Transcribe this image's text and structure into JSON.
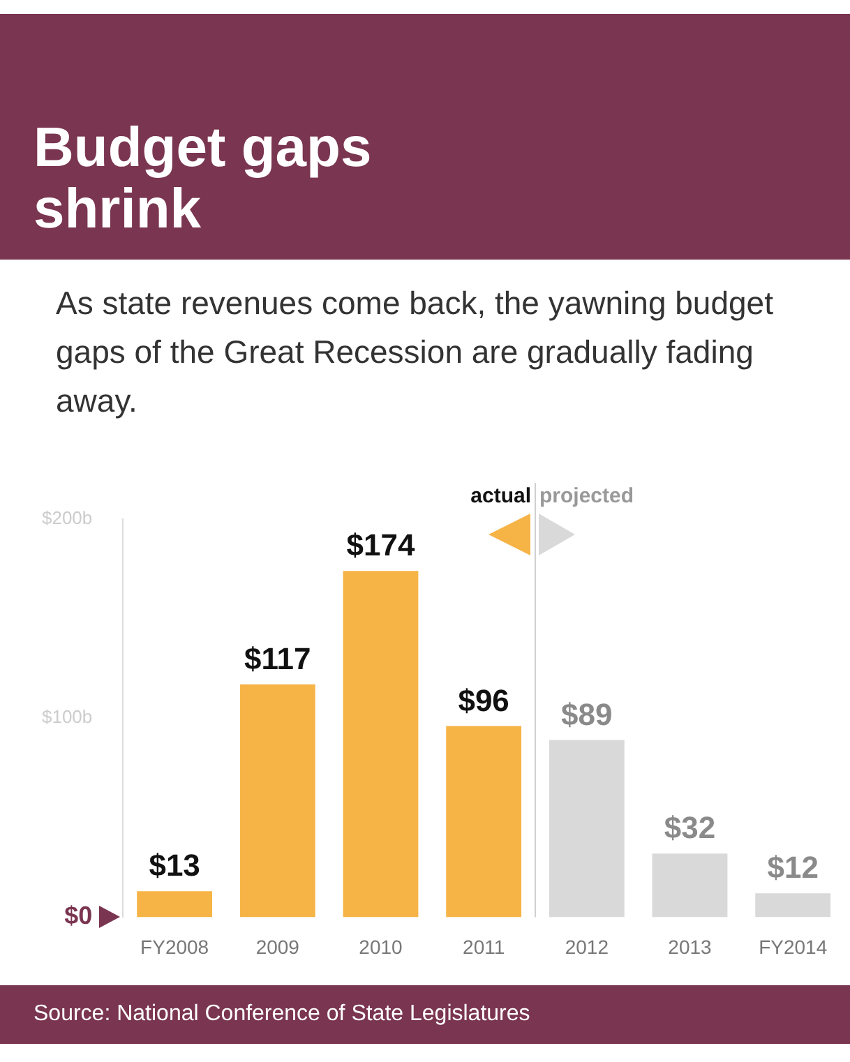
{
  "chart_data": {
    "type": "bar",
    "title": "Budget gaps shrink",
    "subtitle": "As state revenues come back, the yawning budget gaps of the Great Recession are gradually fading away.",
    "categories": [
      "FY2008",
      "2009",
      "2010",
      "2011",
      "2012",
      "2013",
      "FY2014"
    ],
    "values": [
      13,
      117,
      174,
      96,
      89,
      32,
      12
    ],
    "colors": [
      "#f6b446",
      "#f6b446",
      "#f6b446",
      "#f6b446",
      "#d9d9d9",
      "#d9d9d9",
      "#d9d9d9"
    ],
    "value_labels": [
      "$13",
      "$117",
      "$174",
      "$96",
      "$89",
      "$32",
      "$12"
    ],
    "ylim": [
      0,
      200
    ],
    "yticks": [
      {
        "value": 0,
        "label": "$0"
      },
      {
        "value": 100,
        "label": "$100b"
      },
      {
        "value": 200,
        "label": "$200b"
      }
    ],
    "grid": false,
    "legend": false,
    "annotations": [
      "actual",
      "projected",
      "Source: National Conference of State Legislatures"
    ]
  }
}
